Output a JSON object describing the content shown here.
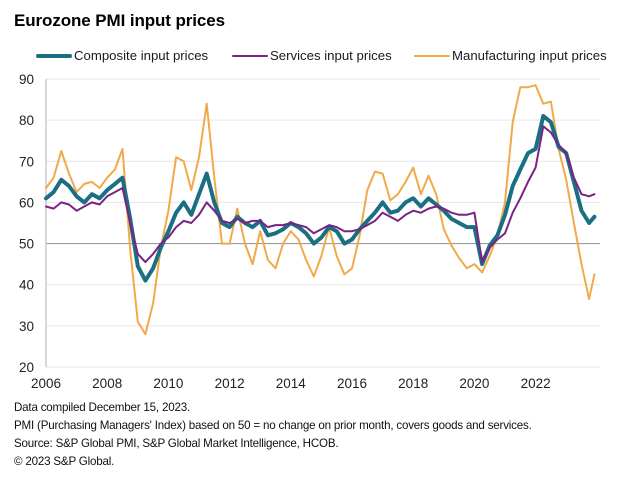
{
  "chart_data": {
    "type": "line",
    "title": "Eurozone PMI input prices",
    "xlabel": "",
    "ylabel": "",
    "ylim": [
      20,
      90
    ],
    "yticks": [
      20,
      30,
      40,
      50,
      60,
      70,
      80,
      90
    ],
    "xlim": [
      2006.0,
      2024.1
    ],
    "xticks": [
      2006,
      2008,
      2010,
      2012,
      2014,
      2016,
      2018,
      2020,
      2022
    ],
    "xtick_labels": [
      "2006",
      "2008",
      "2010",
      "2012",
      "2014",
      "2016",
      "2018",
      "2020",
      "2022"
    ],
    "grid": true,
    "reference_line": 50,
    "legend_position": "top",
    "x": [
      2006.0,
      2006.25,
      2006.5,
      2006.75,
      2007.0,
      2007.25,
      2007.5,
      2007.75,
      2008.0,
      2008.25,
      2008.5,
      2008.75,
      2009.0,
      2009.25,
      2009.5,
      2009.75,
      2010.0,
      2010.25,
      2010.5,
      2010.75,
      2011.0,
      2011.25,
      2011.5,
      2011.75,
      2012.0,
      2012.25,
      2012.5,
      2012.75,
      2013.0,
      2013.25,
      2013.5,
      2013.75,
      2014.0,
      2014.25,
      2014.5,
      2014.75,
      2015.0,
      2015.25,
      2015.5,
      2015.75,
      2016.0,
      2016.25,
      2016.5,
      2016.75,
      2017.0,
      2017.25,
      2017.5,
      2017.75,
      2018.0,
      2018.25,
      2018.5,
      2018.75,
      2019.0,
      2019.25,
      2019.5,
      2019.75,
      2020.0,
      2020.25,
      2020.5,
      2020.75,
      2021.0,
      2021.25,
      2021.5,
      2021.75,
      2022.0,
      2022.25,
      2022.5,
      2022.75,
      2023.0,
      2023.25,
      2023.5,
      2023.75,
      2023.92
    ],
    "series": [
      {
        "name": "Composite input prices",
        "color": "#1B6F82",
        "values": [
          61.0,
          62.5,
          65.5,
          64.0,
          61.5,
          60.0,
          62.0,
          61.0,
          63.0,
          64.5,
          66.0,
          56.0,
          44.5,
          41.0,
          44.0,
          49.0,
          53.0,
          57.5,
          60.0,
          57.0,
          62.0,
          67.0,
          60.0,
          55.0,
          54.0,
          56.5,
          55.0,
          54.0,
          55.5,
          52.0,
          52.5,
          53.5,
          55.0,
          54.0,
          52.5,
          50.0,
          51.5,
          54.0,
          53.0,
          50.0,
          51.0,
          53.5,
          55.5,
          57.5,
          60.0,
          57.5,
          58.0,
          60.0,
          61.0,
          59.0,
          61.0,
          59.5,
          58.0,
          56.0,
          55.0,
          54.0,
          54.0,
          45.0,
          49.5,
          52.0,
          57.0,
          64.0,
          68.0,
          72.0,
          73.0,
          81.0,
          79.5,
          73.5,
          72.0,
          65.0,
          58.0,
          55.0,
          56.5
        ]
      },
      {
        "name": "Services input prices",
        "color": "#7B2285",
        "values": [
          59.0,
          58.5,
          60.0,
          59.5,
          58.0,
          59.0,
          60.0,
          59.5,
          61.5,
          62.5,
          63.5,
          55.0,
          47.5,
          45.5,
          47.5,
          50.0,
          51.5,
          54.0,
          55.5,
          55.0,
          57.0,
          60.0,
          58.0,
          55.5,
          55.0,
          56.0,
          55.0,
          55.5,
          55.5,
          54.0,
          54.5,
          54.5,
          55.0,
          54.5,
          54.0,
          52.5,
          53.5,
          54.5,
          54.0,
          53.0,
          53.0,
          53.5,
          54.5,
          55.5,
          57.5,
          56.5,
          55.5,
          57.0,
          58.0,
          57.5,
          58.5,
          59.0,
          58.5,
          57.5,
          57.0,
          57.0,
          57.5,
          45.5,
          49.0,
          51.0,
          52.5,
          57.5,
          61.0,
          65.0,
          68.5,
          78.5,
          77.0,
          74.0,
          72.0,
          66.0,
          62.0,
          61.5,
          62.0
        ]
      },
      {
        "name": "Manufacturing input prices",
        "color": "#F2A94A",
        "values": [
          63.5,
          66.0,
          72.5,
          67.0,
          62.5,
          64.5,
          65.0,
          63.5,
          66.0,
          68.0,
          73.0,
          48.5,
          31.0,
          28.0,
          35.5,
          49.0,
          58.0,
          71.0,
          70.0,
          63.0,
          71.0,
          84.0,
          66.0,
          50.0,
          50.0,
          58.5,
          50.0,
          45.0,
          53.0,
          46.0,
          44.0,
          50.0,
          53.0,
          51.0,
          46.0,
          42.0,
          47.0,
          54.0,
          47.0,
          42.5,
          44.0,
          52.0,
          63.0,
          67.5,
          67.0,
          60.5,
          62.0,
          65.0,
          68.5,
          62.0,
          66.5,
          62.0,
          53.5,
          49.5,
          46.5,
          44.0,
          45.0,
          43.0,
          47.0,
          52.0,
          60.0,
          79.5,
          88.0,
          88.0,
          88.5,
          84.0,
          84.5,
          73.0,
          65.5,
          55.0,
          45.0,
          36.5,
          42.5
        ]
      }
    ]
  },
  "header": {
    "title": "Eurozone PMI input prices"
  },
  "legend": {
    "items": [
      {
        "label": "Composite input prices",
        "color": "#1B6F82"
      },
      {
        "label": "Services input prices",
        "color": "#7B2285"
      },
      {
        "label": "Manufacturing input prices",
        "color": "#F2A94A"
      }
    ]
  },
  "footer": {
    "notes": [
      "Data compiled December 15, 2023.",
      "PMI (Purchasing Managers' Index) based on 50 = no change on prior month, covers goods and services.",
      "Source: S&P Global PMI, S&P Global Market Intelligence, HCOB.",
      "© 2023 S&P Global."
    ]
  }
}
